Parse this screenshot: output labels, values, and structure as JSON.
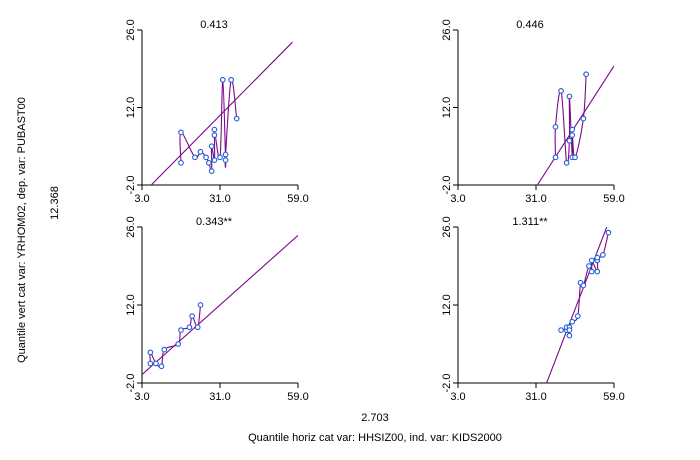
{
  "figure": {
    "xlabel": "Quantile horiz cat var: HHSIZ00,   ind. var: KIDS2000",
    "ylabel": "Quantile vert cat var: YRHOM02,   dep. var: PUBAST00",
    "x_side_value": "2.703",
    "y_side_value": "12.368"
  },
  "colors": {
    "points": "#1f5fd6",
    "curve": "#7a0a8a",
    "axes": "#000000"
  },
  "chart_data": [
    {
      "type": "scatter",
      "panel": "top-left",
      "title": "0.413",
      "xlim": [
        3.0,
        59.0
      ],
      "ylim": [
        -2.0,
        26.0
      ],
      "xticks": [
        "3.0",
        "31.0",
        "59.0"
      ],
      "yticks": [
        "-2.0",
        "12.0",
        "26.0"
      ],
      "points": [
        [
          17,
          7.5
        ],
        [
          17,
          2
        ],
        [
          22,
          3
        ],
        [
          24,
          4
        ],
        [
          26,
          3
        ],
        [
          27,
          2
        ],
        [
          28,
          0.5
        ],
        [
          28,
          5
        ],
        [
          29,
          7
        ],
        [
          29,
          2.5
        ],
        [
          29,
          8
        ],
        [
          31,
          3
        ],
        [
          32,
          17
        ],
        [
          33,
          2.5
        ],
        [
          33,
          3.5
        ],
        [
          35,
          17
        ],
        [
          37,
          10
        ]
      ],
      "regression_line": [
        [
          6.3,
          -2.0
        ],
        [
          57.0,
          23.8
        ]
      ]
    },
    {
      "type": "scatter",
      "panel": "top-right",
      "title": "0.446",
      "xlim": [
        3.0,
        59.0
      ],
      "ylim": [
        -2.0,
        26.0
      ],
      "xticks": [
        "3.0",
        "31.0",
        "59.0"
      ],
      "yticks": [
        "-2.0",
        "12.0",
        "26.0"
      ],
      "points": [
        [
          38,
          8.5
        ],
        [
          38,
          3
        ],
        [
          40,
          15
        ],
        [
          42,
          2
        ],
        [
          43,
          14
        ],
        [
          43,
          6
        ],
        [
          44,
          3
        ],
        [
          44,
          7
        ],
        [
          44,
          8
        ],
        [
          45,
          3
        ],
        [
          48,
          10
        ],
        [
          49,
          18
        ]
      ],
      "regression_line": [
        [
          31.5,
          -2.0
        ],
        [
          59.0,
          19.5
        ]
      ]
    },
    {
      "type": "scatter",
      "panel": "bottom-left",
      "title": "0.343**",
      "xlim": [
        3.0,
        59.0
      ],
      "ylim": [
        -2.0,
        26.0
      ],
      "xticks": [
        "3.0",
        "31.0",
        "59.0"
      ],
      "yticks": [
        "-2.0",
        "12.0",
        "26.0"
      ],
      "points": [
        [
          6,
          3.5
        ],
        [
          6,
          1.5
        ],
        [
          8,
          1.5
        ],
        [
          10,
          1
        ],
        [
          11,
          4
        ],
        [
          16,
          5
        ],
        [
          17,
          7.5
        ],
        [
          20,
          8
        ],
        [
          21,
          10
        ],
        [
          23,
          8
        ],
        [
          24,
          12
        ]
      ],
      "regression_line": [
        [
          3.0,
          -0.5
        ],
        [
          59.0,
          24.5
        ]
      ]
    },
    {
      "type": "scatter",
      "panel": "bottom-right",
      "title": "1.311**",
      "xlim": [
        3.0,
        59.0
      ],
      "ylim": [
        -2.0,
        26.0
      ],
      "xticks": [
        "3.0",
        "31.0",
        "59.0"
      ],
      "yticks": [
        "-2.0",
        "12.0",
        "26.0"
      ],
      "points": [
        [
          40,
          7.5
        ],
        [
          42,
          7.5
        ],
        [
          42,
          8
        ],
        [
          43,
          8
        ],
        [
          43,
          6.5
        ],
        [
          43,
          7.5
        ],
        [
          44,
          9
        ],
        [
          46,
          10
        ],
        [
          47,
          16
        ],
        [
          48,
          15.5
        ],
        [
          50,
          19
        ],
        [
          51,
          20
        ],
        [
          51,
          18
        ],
        [
          53,
          18
        ],
        [
          53,
          20
        ],
        [
          53,
          20.5
        ],
        [
          55,
          21
        ],
        [
          57,
          25
        ]
      ],
      "regression_line": [
        [
          34.8,
          -2.0
        ],
        [
          56.4,
          26.0
        ]
      ]
    }
  ]
}
